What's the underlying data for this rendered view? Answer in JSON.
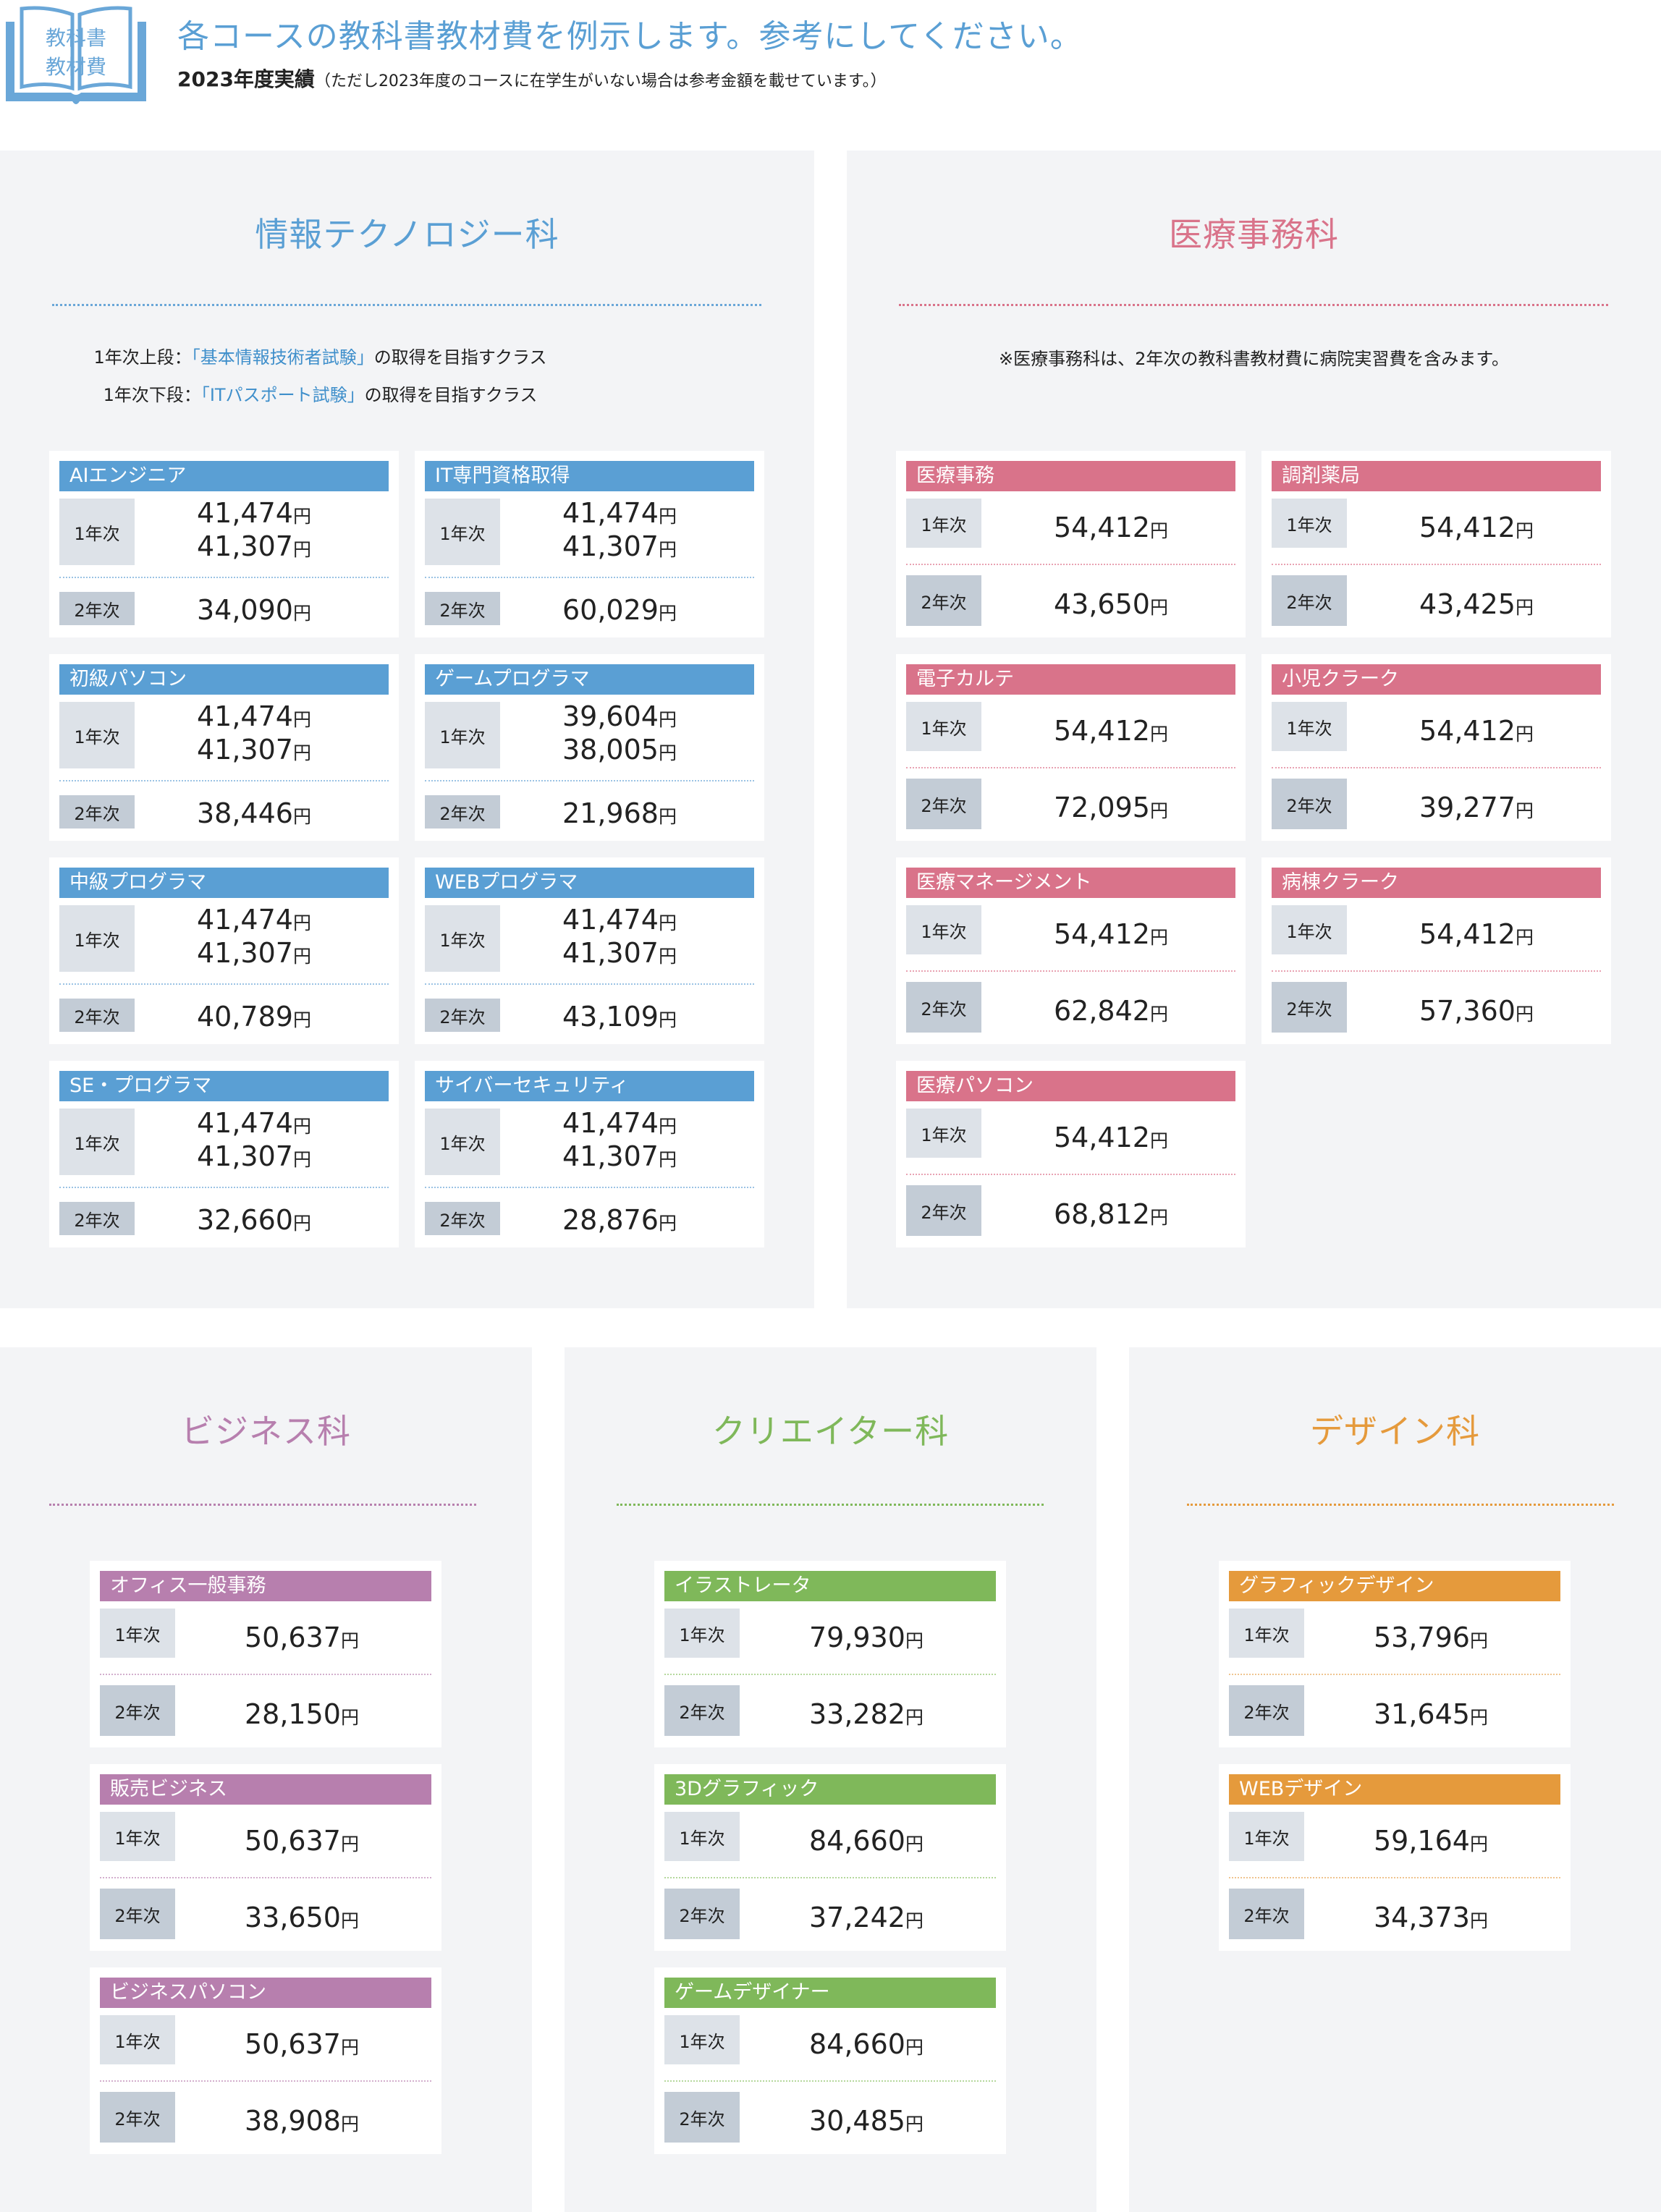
{
  "header": {
    "icon_text_1": "教科書",
    "icon_text_2": "教材費",
    "title": "各コースの教科書教材費を例示します。参考にしてください。",
    "year_label": "2023年度実績",
    "year_note": "（ただし2023年度のコースに在学生がいない場合は参考金額を載せています。）"
  },
  "labels": {
    "year1": "1年次",
    "year2": "2年次",
    "yen": "円"
  },
  "colors": {
    "it": "#5a9fd4",
    "medical": "#d9738a",
    "business": "#b77fae",
    "creator": "#7fb85a",
    "design": "#e59a3c"
  },
  "departments": {
    "it": {
      "title": "情報テクノロジー科",
      "note_line1_prefix": "1年次上段：",
      "note_line1_highlight": "「基本情報技術者試験」",
      "note_line1_suffix": "の取得を目指すクラス",
      "note_line2_prefix": "1年次下段：",
      "note_line2_highlight": "「ITパスポート試験」",
      "note_line2_suffix": "の取得を目指すクラス",
      "courses": [
        {
          "name": "AIエンジニア",
          "y1a": "41,474",
          "y1b": "41,307",
          "y2": "34,090"
        },
        {
          "name": "IT専門資格取得",
          "y1a": "41,474",
          "y1b": "41,307",
          "y2": "60,029"
        },
        {
          "name": "初級パソコン",
          "y1a": "41,474",
          "y1b": "41,307",
          "y2": "38,446"
        },
        {
          "name": "ゲームプログラマ",
          "y1a": "39,604",
          "y1b": "38,005",
          "y2": "21,968"
        },
        {
          "name": "中級プログラマ",
          "y1a": "41,474",
          "y1b": "41,307",
          "y2": "40,789"
        },
        {
          "name": "WEBプログラマ",
          "y1a": "41,474",
          "y1b": "41,307",
          "y2": "43,109"
        },
        {
          "name": "SE・プログラマ",
          "y1a": "41,474",
          "y1b": "41,307",
          "y2": "32,660"
        },
        {
          "name": "サイバーセキュリティ",
          "y1a": "41,474",
          "y1b": "41,307",
          "y2": "28,876"
        }
      ]
    },
    "medical": {
      "title": "医療事務科",
      "note": "※医療事務科は、2年次の教科書教材費に病院実習費を含みます。",
      "courses": [
        {
          "name": "医療事務",
          "y1": "54,412",
          "y2": "43,650"
        },
        {
          "name": "調剤薬局",
          "y1": "54,412",
          "y2": "43,425"
        },
        {
          "name": "電子カルテ",
          "y1": "54,412",
          "y2": "72,095"
        },
        {
          "name": "小児クラーク",
          "y1": "54,412",
          "y2": "39,277"
        },
        {
          "name": "医療マネージメント",
          "y1": "54,412",
          "y2": "62,842"
        },
        {
          "name": "病棟クラーク",
          "y1": "54,412",
          "y2": "57,360"
        },
        {
          "name": "医療パソコン",
          "y1": "54,412",
          "y2": "68,812"
        }
      ]
    },
    "business": {
      "title": "ビジネス科",
      "courses": [
        {
          "name": "オフィス一般事務",
          "y1": "50,637",
          "y2": "28,150"
        },
        {
          "name": "販売ビジネス",
          "y1": "50,637",
          "y2": "33,650"
        },
        {
          "name": "ビジネスパソコン",
          "y1": "50,637",
          "y2": "38,908"
        }
      ]
    },
    "creator": {
      "title": "クリエイター科",
      "courses": [
        {
          "name": "イラストレータ",
          "y1": "79,930",
          "y2": "33,282"
        },
        {
          "name": "3Dグラフィック",
          "y1": "84,660",
          "y2": "37,242"
        },
        {
          "name": "ゲームデザイナー",
          "y1": "84,660",
          "y2": "30,485"
        }
      ]
    },
    "design": {
      "title": "デザイン科",
      "courses": [
        {
          "name": "グラフィックデザイン",
          "y1": "53,796",
          "y2": "31,645"
        },
        {
          "name": "WEBデザイン",
          "y1": "59,164",
          "y2": "34,373"
        }
      ]
    }
  }
}
